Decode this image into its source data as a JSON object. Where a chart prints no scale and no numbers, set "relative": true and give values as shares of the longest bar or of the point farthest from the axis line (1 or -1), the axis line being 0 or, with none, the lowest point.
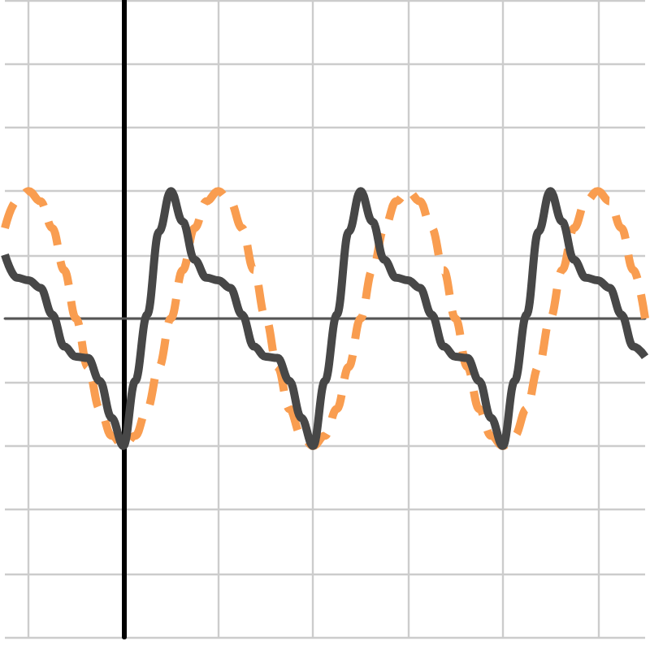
{
  "chart_data": {
    "type": "line",
    "relative": true,
    "grid": true,
    "marker": "none",
    "categories": [
      null,
      null,
      null,
      null,
      null,
      null,
      null,
      null,
      null,
      null,
      null,
      null,
      null,
      null,
      null,
      null,
      null,
      null,
      null,
      null,
      null,
      null,
      null,
      null,
      null,
      null,
      null,
      null,
      null,
      null,
      null,
      null,
      null,
      null,
      null,
      null,
      null,
      null,
      null,
      null,
      null,
      null,
      null,
      null,
      null,
      null,
      null,
      null,
      null,
      null,
      null,
      null,
      null,
      null,
      null
    ],
    "series": [
      {
        "color": "#f99d50",
        "line_style": "dashed",
        "values": [
          0.71,
          0.92,
          1,
          0.92,
          0.71,
          0.38,
          0,
          -0.38,
          -0.71,
          -0.92,
          -1,
          -0.92,
          -0.71,
          -0.38,
          0,
          0.38,
          0.71,
          0.92,
          1,
          0.92,
          0.71,
          0.38,
          0,
          -0.38,
          -0.71,
          -0.92,
          -1,
          -0.92,
          -0.71,
          -0.38,
          0,
          0.38,
          0.71,
          0.92,
          1,
          0.92,
          0.71,
          0.38,
          0,
          -0.38,
          -0.71,
          -0.92,
          -1,
          -0.92,
          -0.71,
          -0.38,
          0,
          0.38,
          0.71,
          0.92,
          1,
          0.92,
          0.71,
          0.38,
          0
        ]
      },
      {
        "color": "#474747",
        "line_style": "solid",
        "values": [
          0.5,
          0.32,
          0.3,
          0.24,
          0.03,
          -0.22,
          -0.3,
          -0.31,
          -0.49,
          -0.78,
          -1,
          -0.49,
          0.03,
          0.68,
          1,
          0.76,
          0.46,
          0.32,
          0.3,
          0.24,
          0.03,
          -0.22,
          -0.3,
          -0.31,
          -0.49,
          -0.78,
          -1,
          -0.49,
          0.03,
          0.68,
          1,
          0.76,
          0.46,
          0.32,
          0.3,
          0.24,
          0.03,
          -0.22,
          -0.3,
          -0.31,
          -0.49,
          -0.78,
          -1,
          -0.49,
          0.03,
          0.68,
          1,
          0.76,
          0.46,
          0.32,
          0.3,
          0.24,
          0.03,
          -0.22,
          -0.3
        ]
      }
    ]
  }
}
